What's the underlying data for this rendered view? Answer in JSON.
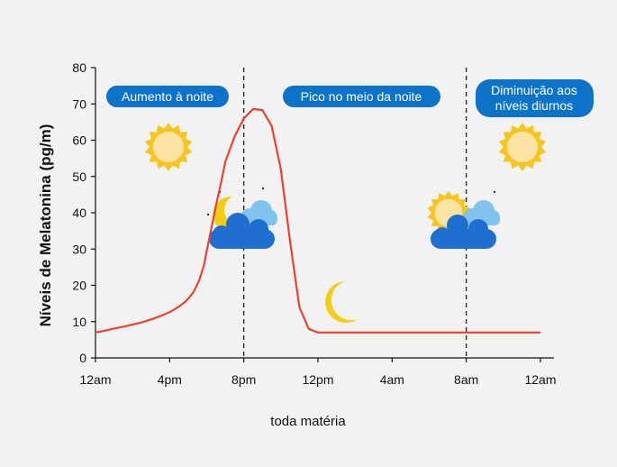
{
  "chart_data": {
    "type": "line",
    "ylabel": "Níveis de Melatonina (pg/m)",
    "ylim": [
      0,
      80
    ],
    "yticks": [
      0,
      10,
      20,
      30,
      40,
      50,
      60,
      70,
      80
    ],
    "xticks": [
      "12am",
      "4pm",
      "8pm",
      "12pm",
      "4am",
      "8am",
      "12am"
    ],
    "series": [
      {
        "color": "#e8432c",
        "x": [
          0,
          0.5,
          1,
          1.5,
          2,
          2.5,
          3,
          3.5,
          4,
          4.5,
          4.85,
          5,
          5.3,
          5.6,
          5.85,
          6.0,
          6.1,
          6.3,
          6.5,
          6.8,
          7.0,
          7.5,
          8,
          8.5,
          9,
          9.5,
          10,
          10.5,
          11,
          11.5,
          12,
          12.5,
          13,
          13.5,
          14,
          14.5,
          15,
          15.5,
          16,
          16.5,
          17,
          17.5,
          18,
          18.5,
          19,
          19.5,
          20,
          20.5,
          21,
          21.5,
          22,
          22.5,
          23,
          23.5,
          24
        ],
        "y": [
          7,
          7.5,
          8.1,
          8.6,
          9.2,
          9.8,
          10.6,
          11.5,
          12.6,
          14.1,
          15.5,
          16.3,
          18.2,
          21.5,
          25.5,
          29.5,
          32.0,
          37,
          42,
          49,
          54,
          61,
          66,
          68.6,
          68.3,
          64,
          52,
          32,
          14,
          8,
          7,
          7,
          7,
          7,
          7,
          7,
          7,
          7,
          7,
          7,
          7,
          7,
          7,
          7,
          7,
          7,
          7,
          7,
          7,
          7,
          7,
          7,
          7,
          7,
          7
        ]
      }
    ],
    "vlines_at_hour": [
      8,
      20
    ],
    "grid": false,
    "annotations": [
      {
        "text": "Aumento à noite",
        "lines": [
          "Aumento à noite"
        ]
      },
      {
        "text": "Pico no meio da noite",
        "lines": [
          "Pico no meio da noite"
        ]
      },
      {
        "text": "Diminuição aos níveis diurnos",
        "lines": [
          "Diminuição aos",
          "níveis diurnos"
        ]
      }
    ]
  },
  "watermark": "toda matéria",
  "colors": {
    "background": "#f2f2f2",
    "axis": "#111111",
    "line": "#e8432c",
    "pill": "#0c73c9",
    "pill_text": "#ffffff",
    "sun": "#f7c520",
    "sun_center": "#fbe3a4",
    "moon": "#f2cd16",
    "cloud_dark": "#1f6fd0",
    "cloud_light": "#7fc3ee"
  },
  "icons": [
    "sun-icon",
    "moon-cloud-icon",
    "moon-icon",
    "sun-cloud-icon"
  ]
}
